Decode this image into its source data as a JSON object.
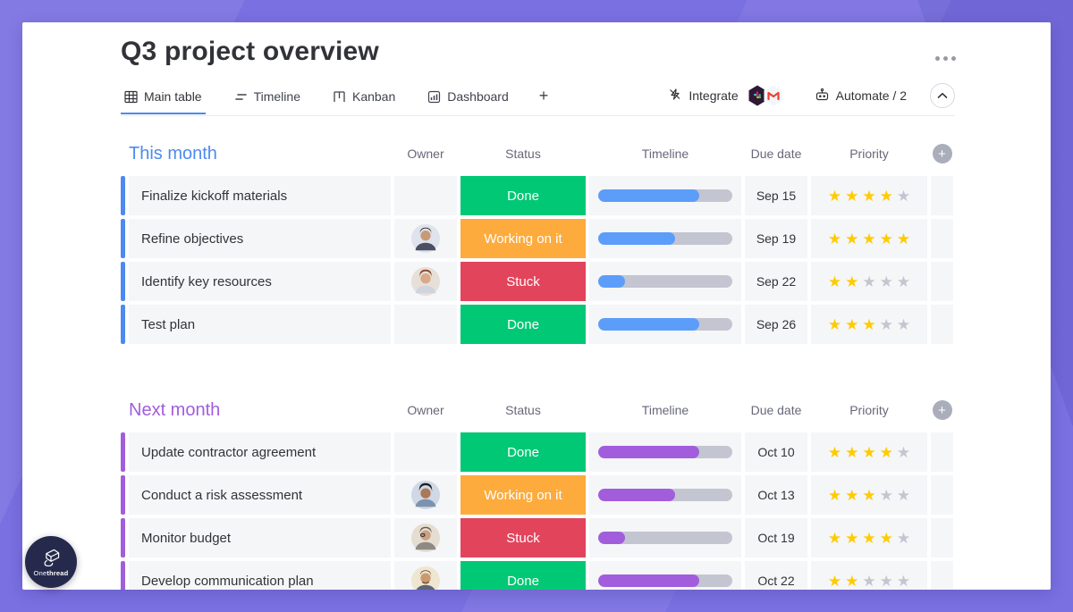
{
  "header": {
    "title": "Q3 project overview"
  },
  "tabs": {
    "main_table": "Main table",
    "timeline": "Timeline",
    "kanban": "Kanban",
    "dashboard": "Dashboard",
    "add": "+"
  },
  "toolbar": {
    "integrate_label": "Integrate",
    "automate_label": "Automate / 2"
  },
  "columns": [
    "Owner",
    "Status",
    "Timeline",
    "Due date",
    "Priority"
  ],
  "colors": {
    "background": "#7b70e2",
    "status_done": "#00c875",
    "status_working": "#fdab3d",
    "status_stuck": "#e2445c",
    "group1": "#4d8af0",
    "group2": "#a25ddc",
    "star_filled": "#ffcb00",
    "timeline_blue": "#5c9dfa",
    "timeline_purple": "#a25ddc"
  },
  "groups": [
    {
      "title": "This month",
      "color": "#4d8af0",
      "rows": [
        {
          "task": "Finalize kickoff materials",
          "owner": "",
          "status": {
            "label": "Done",
            "color": "#00c875"
          },
          "timeline": {
            "percent": 75,
            "color": "#5c9dfa"
          },
          "due": "Sep 15",
          "priority": 4
        },
        {
          "task": "Refine objectives",
          "owner": "avatar-woman-dark-hair",
          "status": {
            "label": "Working on it",
            "color": "#fdab3d"
          },
          "timeline": {
            "percent": 57,
            "color": "#5c9dfa"
          },
          "due": "Sep 19",
          "priority": 5
        },
        {
          "task": "Identify key resources",
          "owner": "avatar-woman-curly-hair",
          "status": {
            "label": "Stuck",
            "color": "#e2445c"
          },
          "timeline": {
            "percent": 20,
            "color": "#5c9dfa"
          },
          "due": "Sep 22",
          "priority": 2
        },
        {
          "task": "Test plan",
          "owner": "",
          "status": {
            "label": "Done",
            "color": "#00c875"
          },
          "timeline": {
            "percent": 75,
            "color": "#5c9dfa"
          },
          "due": "Sep 26",
          "priority": 3
        }
      ]
    },
    {
      "title": "Next month",
      "color": "#a25ddc",
      "rows": [
        {
          "task": "Update contractor agreement",
          "owner": "",
          "status": {
            "label": "Done",
            "color": "#00c875"
          },
          "timeline": {
            "percent": 75,
            "color": "#a25ddc"
          },
          "due": "Oct 10",
          "priority": 4
        },
        {
          "task": "Conduct a risk assessment",
          "owner": "avatar-man-turban",
          "status": {
            "label": "Working on it",
            "color": "#fdab3d"
          },
          "timeline": {
            "percent": 57,
            "color": "#a25ddc"
          },
          "due": "Oct 13",
          "priority": 3
        },
        {
          "task": "Monitor budget",
          "owner": "avatar-woman-glasses",
          "status": {
            "label": "Stuck",
            "color": "#e2445c"
          },
          "timeline": {
            "percent": 20,
            "color": "#a25ddc"
          },
          "due": "Oct 19",
          "priority": 4
        },
        {
          "task": "Develop communication plan",
          "owner": "avatar-man-beard",
          "status": {
            "label": "Done",
            "color": "#00c875"
          },
          "timeline": {
            "percent": 75,
            "color": "#a25ddc"
          },
          "due": "Oct 22",
          "priority": 2
        }
      ]
    }
  ],
  "brand": {
    "name_regular": "One",
    "name_bold": "thread"
  }
}
